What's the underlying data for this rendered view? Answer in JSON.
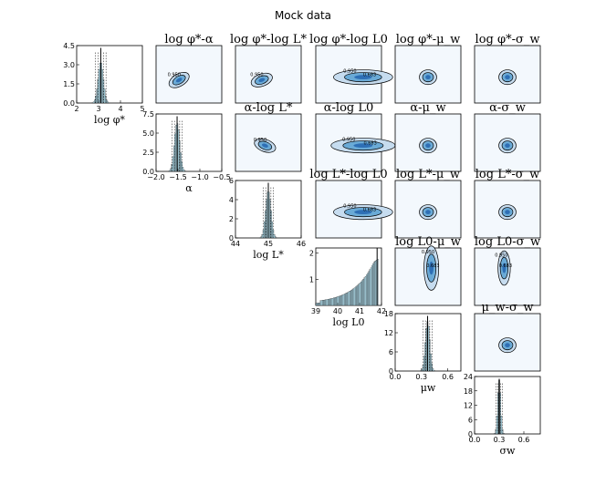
{
  "title": "Mock data",
  "colors": {
    "hist_fill": "#add8e6",
    "hist_edge": "#000000",
    "contour_bg": "#f3f8fd",
    "contour_core": "#2e6fb5",
    "contour_mid": "#6aaad6",
    "contour_outer": "#c6dcef",
    "contour_line": "#000000"
  },
  "chart_data": [
    {
      "type": "histogram",
      "parameter": "log_phi_star",
      "xlabel": "log φ*",
      "xlim": [
        2,
        5
      ],
      "ylim": [
        0,
        4.5
      ],
      "xticks": [
        "2",
        "3",
        "4",
        "5"
      ],
      "yticks": [
        "0.0",
        "1.5",
        "3.0",
        "4.5"
      ],
      "peak_x": 3.1,
      "peak_y": 3.2,
      "sigma": 0.12,
      "shape": "gaussian"
    },
    {
      "type": "histogram",
      "parameter": "alpha",
      "xlabel": "α",
      "xlim": [
        -2.0,
        -0.5
      ],
      "ylim": [
        0,
        7.5
      ],
      "xticks": [
        "−2.0",
        "−1.5",
        "−1.0",
        "−0.5"
      ],
      "yticks": [
        "0.0",
        "2.5",
        "5.0",
        "7.5"
      ],
      "peak_x": -1.52,
      "peak_y": 6.3,
      "sigma": 0.06,
      "shape": "gaussian"
    },
    {
      "type": "histogram",
      "parameter": "log_L_star",
      "xlabel": "log L*",
      "xlim": [
        44,
        46
      ],
      "ylim": [
        0,
        6
      ],
      "xticks": [
        "44",
        "45",
        "46"
      ],
      "yticks": [
        "0",
        "2",
        "4",
        "6"
      ],
      "peak_x": 45.0,
      "peak_y": 4.9,
      "sigma": 0.08,
      "shape": "gaussian"
    },
    {
      "type": "histogram",
      "parameter": "log_L0",
      "xlabel": "log L0",
      "xlim": [
        39,
        42
      ],
      "ylim": [
        0,
        2.2
      ],
      "xticks": [
        "39",
        "40",
        "41",
        "42"
      ],
      "yticks": [
        "1",
        "2"
      ],
      "peak_x": 41.8,
      "peak_y": 1.85,
      "sigma": 0.5,
      "shape": "skewed"
    },
    {
      "type": "histogram",
      "parameter": "mu_w",
      "xlabel": "μ_w",
      "xlim": [
        0.0,
        0.75
      ],
      "ylim": [
        0,
        18
      ],
      "xticks": [
        "0.0",
        "0.3",
        "0.6"
      ],
      "yticks": [
        "0",
        "6",
        "12",
        "18"
      ],
      "peak_x": 0.37,
      "peak_y": 15.5,
      "sigma": 0.025,
      "shape": "gaussian"
    },
    {
      "type": "histogram",
      "parameter": "sigma_w",
      "xlabel": "σ_w",
      "xlim": [
        0.0,
        0.8
      ],
      "ylim": [
        0,
        24
      ],
      "xticks": [
        "0.0",
        "0.3",
        "0.6"
      ],
      "yticks": [
        "0",
        "6",
        "12",
        "18",
        "24"
      ],
      "peak_x": 0.3,
      "peak_y": 22.5,
      "sigma": 0.018,
      "shape": "gaussian"
    }
  ],
  "pair_titles": [
    "log φ*-α",
    "log φ*-log L*",
    "log φ*-log L0",
    "log φ*-μ_w",
    "log φ*-σ_w",
    "α-log L*",
    "α-log L0",
    "α-μ_w",
    "α-σ_w",
    "log L*-log L0",
    "log L*-μ_w",
    "log L*-σ_w",
    "log L0-μ_w",
    "log L0-σ_w",
    "μ_w-σ_w"
  ],
  "contour_labels": [
    "0.950",
    "0.683"
  ]
}
